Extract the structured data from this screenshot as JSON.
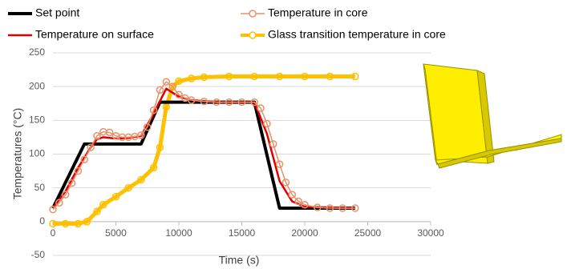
{
  "chart_data": {
    "type": "line",
    "x_label": "Time (s)",
    "y_label": "Temperatures (°C)",
    "xlim": [
      0,
      30000
    ],
    "xticks": [
      0,
      5000,
      10000,
      15000,
      20000,
      25000,
      30000
    ],
    "ylim": [
      -50,
      250
    ],
    "yticks": [
      -50,
      0,
      50,
      100,
      150,
      200,
      250
    ],
    "grid": true,
    "legend": "top",
    "series": [
      {
        "name": "Set point",
        "color": "#000000",
        "marker": "none",
        "width": 4,
        "x": [
          0,
          2500,
          7000,
          8500,
          16000,
          18000,
          24000
        ],
        "values": [
          20,
          115,
          115,
          177,
          177,
          20,
          20
        ]
      },
      {
        "name": "Temperature in core",
        "color": "#e8916a",
        "marker": "circle",
        "width": 1.5,
        "x": [
          0,
          500,
          1000,
          1500,
          2000,
          2500,
          3000,
          3500,
          4000,
          4500,
          5000,
          5500,
          6000,
          6500,
          7000,
          7500,
          8000,
          8500,
          9000,
          9500,
          10000,
          10500,
          11000,
          12000,
          13000,
          14000,
          15000,
          16000,
          16500,
          17000,
          17500,
          18000,
          18500,
          19000,
          19500,
          20000,
          21000,
          22000,
          23000,
          24000
        ],
        "values": [
          18,
          28,
          40,
          57,
          75,
          92,
          110,
          127,
          133,
          132,
          127,
          125,
          125,
          126,
          128,
          140,
          165,
          195,
          207,
          200,
          188,
          183,
          180,
          178,
          177,
          177,
          177,
          177,
          168,
          145,
          115,
          85,
          58,
          40,
          30,
          25,
          21,
          20,
          20,
          20
        ]
      },
      {
        "name": "Temperature on surface",
        "color": "#e00000",
        "marker": "none",
        "width": 2.5,
        "x": [
          0,
          1000,
          2000,
          3000,
          3500,
          4000,
          5000,
          6000,
          7000,
          8000,
          9000,
          10000,
          11000,
          13000,
          16000,
          17000,
          18000,
          19000,
          20000,
          24000
        ],
        "values": [
          20,
          45,
          80,
          110,
          122,
          125,
          123,
          124,
          127,
          160,
          197,
          185,
          180,
          177,
          177,
          130,
          60,
          30,
          22,
          20
        ]
      },
      {
        "name": "Glass transition temperature in core",
        "color": "#ffc000",
        "marker": "circle",
        "width": 5,
        "x": [
          0,
          1000,
          2000,
          2700,
          3500,
          4000,
          5000,
          6000,
          7000,
          8000,
          8500,
          9000,
          9500,
          10000,
          11000,
          12000,
          14000,
          16000,
          18000,
          20000,
          22000,
          24000
        ],
        "values": [
          -3,
          -3,
          -3,
          0,
          15,
          25,
          37,
          50,
          62,
          80,
          110,
          170,
          200,
          208,
          212,
          214,
          215,
          215,
          215,
          215,
          215,
          215
        ]
      }
    ]
  }
}
